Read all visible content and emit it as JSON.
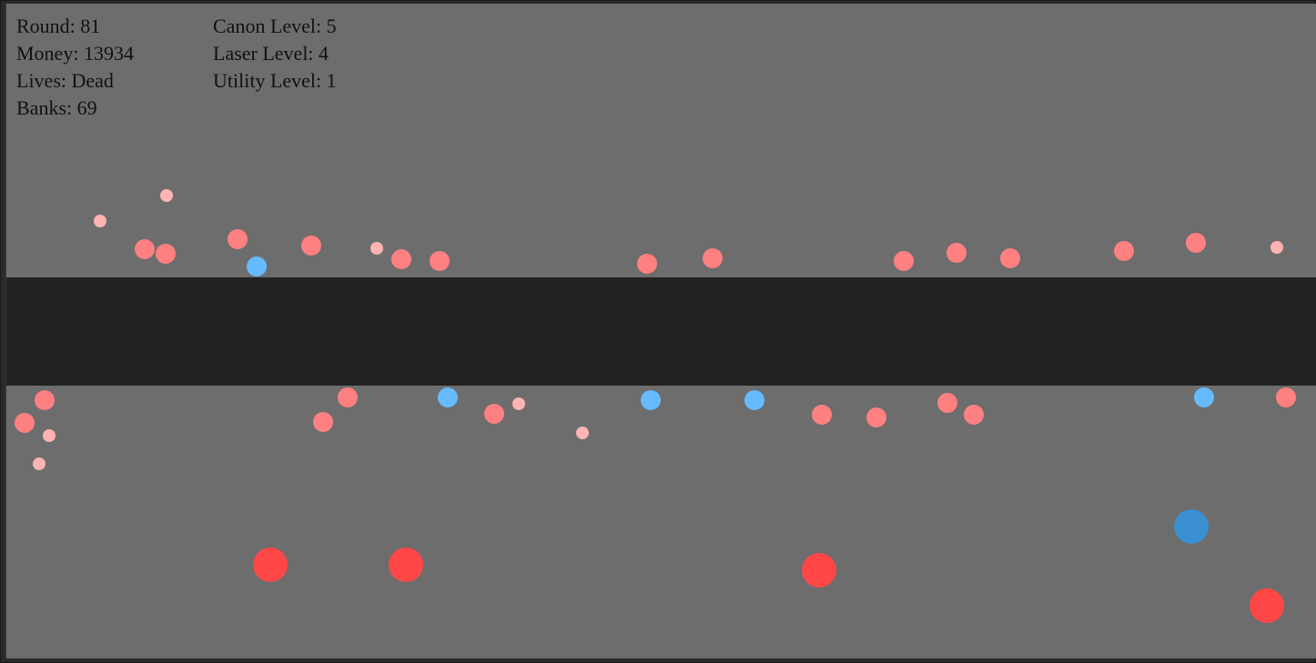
{
  "hud": {
    "round_label": "Round: 81",
    "money_label": "Money: 13934",
    "lives_label": "Lives: Dead",
    "banks_label": "Banks: 69",
    "canon_label": "Canon Level: 5",
    "laser_label": "Laser Level: 4",
    "utility_label": "Utility Level: 1"
  },
  "colors": {
    "field": "#6d6d6d",
    "road": "#222222",
    "enemy": "#ff8080",
    "enemy_small": "#ffb3b3",
    "ally_blue": "#66bbff",
    "cannon_red": "#ff4747",
    "cannon_blue": "#3a8fd0"
  }
}
